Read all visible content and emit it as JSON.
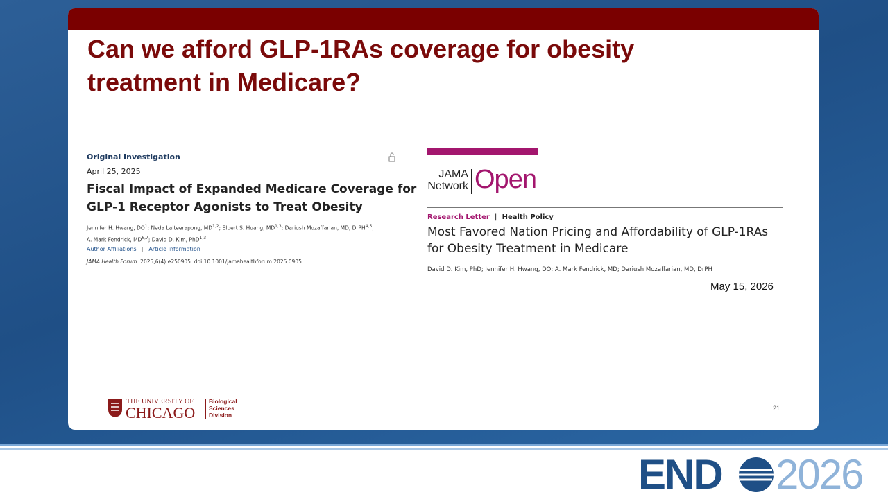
{
  "slide": {
    "title_lines": [
      "Can we afford GLP-1RAs coverage for obesity",
      "treatment in Medicare?"
    ],
    "left_article": {
      "kind": "Original Investigation",
      "date": "April 25, 2025",
      "title_lines": [
        "Fiscal Impact of Expanded Medicare Coverage for",
        "GLP-1 Receptor Agonists to Treat Obesity"
      ],
      "authors": [
        {
          "text": "Jennifer H. Hwang, DO",
          "sup": "1"
        },
        {
          "text": "; Neda Laiteerapong, MD",
          "sup": "1,2"
        },
        {
          "text": "; Elbert S. Huang, MD",
          "sup": "1,3"
        },
        {
          "text": "; Dariush Mozaffarian, MD, DrPH",
          "sup": "4,5"
        },
        {
          "text": "; A. Mark Fendrick, MD",
          "sup": "6,7"
        },
        {
          "text": "; David D. Kim, PhD",
          "sup": "1,3"
        }
      ],
      "links": [
        "Author Affiliations",
        "Article Information"
      ],
      "journal": "JAMA Health Forum.",
      "citation": "2025;6(4):e250905. doi:10.1001/jamahealthforum.2025.0905"
    },
    "right_article": {
      "logo_top": "JAMA",
      "logo_bottom": "Network",
      "logo_open": "Open",
      "kind": "Research Letter",
      "section": "Health Policy",
      "title_lines": [
        "Most Favored Nation Pricing and Affordability of GLP-1RAs",
        "for Obesity Treatment in Medicare"
      ],
      "authors": "David D. Kim, PhD; Jennifer H. Hwang, DO; A. Mark Fendrick, MD; Dariush Mozaffarian, MD, DrPH",
      "date": "May 15, 2026"
    },
    "footer": {
      "univ_top": "THE UNIVERSITY OF",
      "univ_name": "CHICAGO",
      "division": [
        "Biological",
        "Sciences",
        "Division"
      ],
      "page_number": "21"
    }
  },
  "conference": {
    "prefix": "END",
    "suffix": "2026"
  }
}
